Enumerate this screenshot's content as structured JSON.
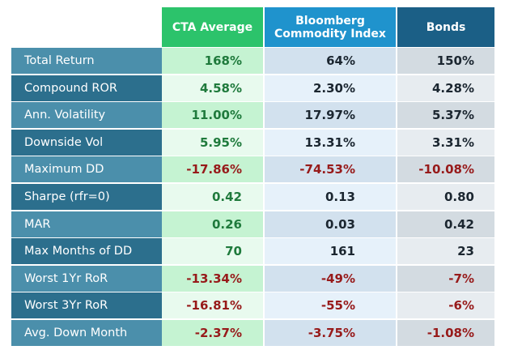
{
  "table": {
    "headers": [
      "CTA Average",
      "Bloomberg\nCommodity Index",
      "Bonds"
    ],
    "rows": [
      {
        "label": "Total Return",
        "cta": "168%",
        "bcom": "64%",
        "bonds": "150%"
      },
      {
        "label": "Compound ROR",
        "cta": "4.58%",
        "bcom": "2.30%",
        "bonds": "4.28%"
      },
      {
        "label": "Ann. Volatility",
        "cta": "11.00%",
        "bcom": "17.97%",
        "bonds": "5.37%"
      },
      {
        "label": "Downside Vol",
        "cta": "5.95%",
        "bcom": "13.31%",
        "bonds": "3.31%"
      },
      {
        "label": "Maximum DD",
        "cta": "-17.86%",
        "bcom": "-74.53%",
        "bonds": "-10.08%"
      },
      {
        "label": "Sharpe (rfr=0)",
        "cta": "0.42",
        "bcom": "0.13",
        "bonds": "0.80"
      },
      {
        "label": "MAR",
        "cta": "0.26",
        "bcom": "0.03",
        "bonds": "0.42"
      },
      {
        "label": "Max Months of DD",
        "cta": "70",
        "bcom": "161",
        "bonds": "23"
      },
      {
        "label": "Worst 1Yr RoR",
        "cta": "-13.34%",
        "bcom": "-49%",
        "bonds": "-7%"
      },
      {
        "label": "Worst 3Yr RoR",
        "cta": "-16.81%",
        "bcom": "-55%",
        "bonds": "-6%"
      },
      {
        "label": "Avg. Down Month",
        "cta": "-2.37%",
        "bcom": "-3.75%",
        "bonds": "-1.08%"
      }
    ]
  },
  "colors": {
    "cta_header": "#2cc36b",
    "bcom_header": "#1f93cd",
    "bonds_header": "#1b5f86",
    "label_dark": "#2c6f8d",
    "label_light": "#4b8fab",
    "positive_cta": "#1f7a3c",
    "negative": "#971a1a"
  }
}
